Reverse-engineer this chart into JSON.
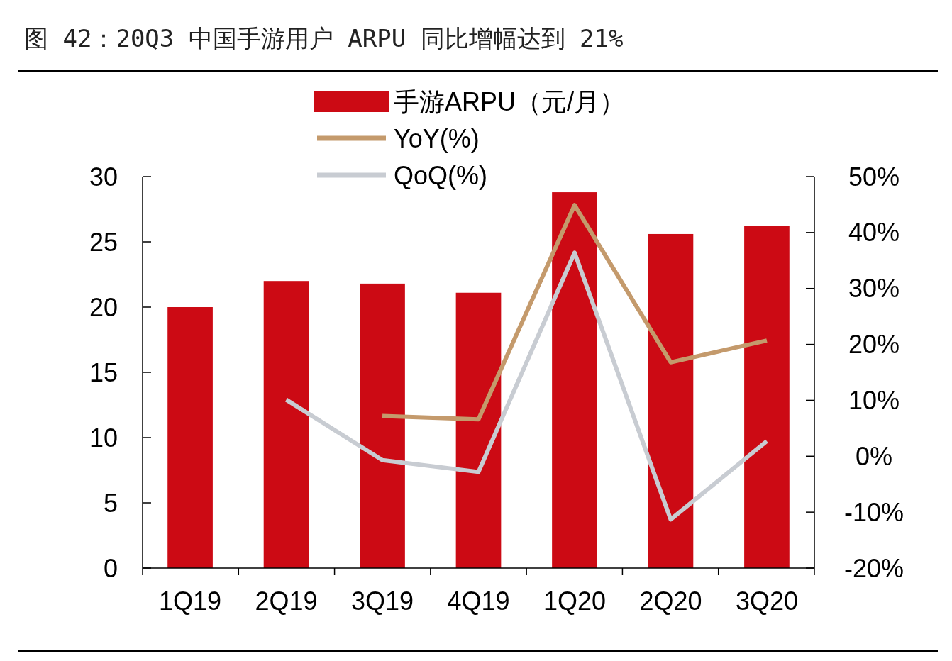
{
  "chart_data": {
    "type": "bar",
    "title": "图 42：20Q3 中国手游用户 ARPU 同比增幅达到 21%",
    "categories": [
      "1Q19",
      "2Q19",
      "3Q19",
      "4Q19",
      "1Q20",
      "2Q20",
      "3Q20"
    ],
    "series": [
      {
        "name": "手游ARPU（元/月）",
        "color": "#cc0a14",
        "values": [
          20.0,
          22.0,
          21.8,
          21.1,
          28.8,
          25.6,
          26.2
        ]
      },
      {
        "name": "YoY(%)",
        "type": "line",
        "axis": "y2",
        "color": "#c49a6c",
        "values": [
          null,
          null,
          7.2,
          6.6,
          44.9,
          16.8,
          20.7
        ]
      },
      {
        "name": "QoQ(%)",
        "type": "line",
        "axis": "y2",
        "color": "#c8ccd2",
        "values": [
          null,
          10.1,
          -0.7,
          -2.8,
          36.4,
          -11.3,
          2.7
        ]
      }
    ],
    "ylim": [
      0,
      30
    ],
    "yticks": [
      0,
      5,
      10,
      15,
      20,
      25,
      30
    ],
    "y2lim": [
      -20,
      50
    ],
    "y2ticks": [
      {
        "value": -20,
        "label": "-20%"
      },
      {
        "value": -10,
        "label": "-10%"
      },
      {
        "value": 0,
        "label": "0%"
      },
      {
        "value": 10,
        "label": "10%"
      },
      {
        "value": 20,
        "label": "20%"
      },
      {
        "value": 30,
        "label": "30%"
      },
      {
        "value": 40,
        "label": "40%"
      },
      {
        "value": 50,
        "label": "50%"
      }
    ],
    "legend": "top",
    "grid": false
  }
}
